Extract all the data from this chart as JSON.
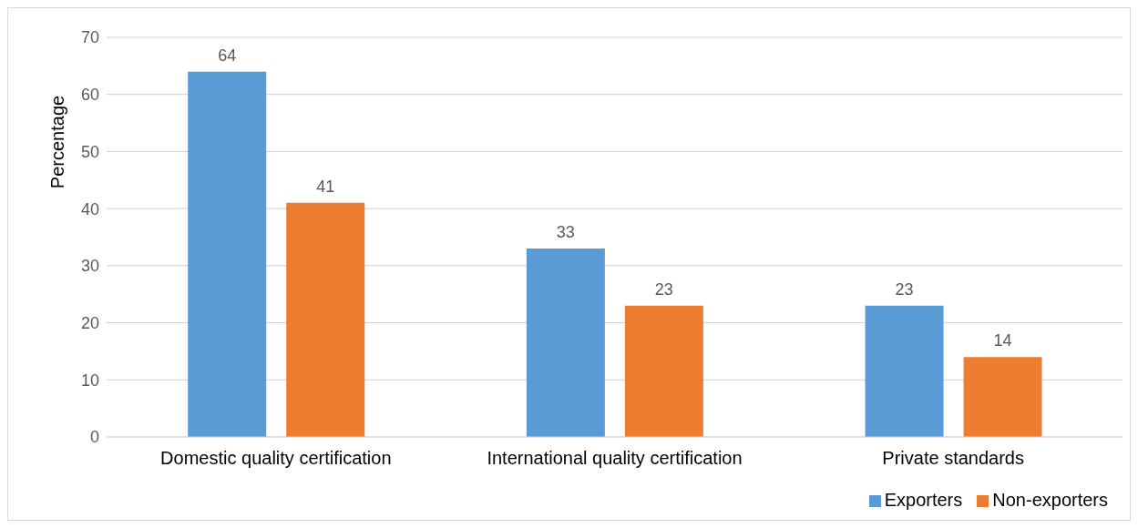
{
  "chart_data": {
    "type": "bar",
    "ylabel": "Percentage",
    "categories": [
      "Domestic quality certification",
      "International quality certification",
      "Private standards"
    ],
    "series": [
      {
        "name": "Exporters",
        "color": "#5b9bd5",
        "values": [
          64,
          33,
          23
        ]
      },
      {
        "name": "Non-exporters",
        "color": "#ed7d31",
        "values": [
          41,
          23,
          14
        ]
      }
    ],
    "ylim": [
      0,
      70
    ],
    "yticks": [
      0,
      10,
      20,
      30,
      40,
      50,
      60,
      70
    ],
    "grid": "y",
    "legend": "bottom right",
    "data_labels": true
  }
}
